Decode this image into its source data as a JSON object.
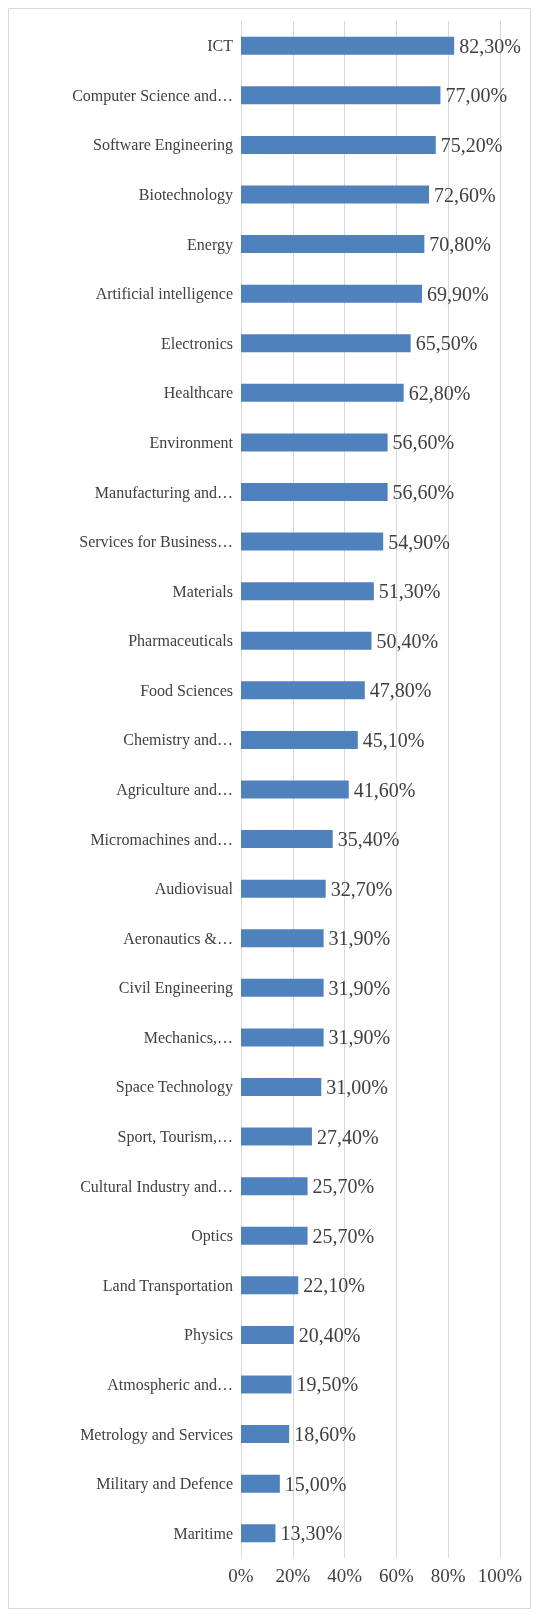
{
  "chart_data": {
    "type": "bar",
    "orientation": "horizontal",
    "categories": [
      "ICT",
      "Computer Science and…",
      "Software Engineering",
      "Biotechnology",
      "Energy",
      "Artificial intelligence",
      "Electronics",
      "Healthcare",
      "Environment",
      "Manufacturing and…",
      "Services for Business…",
      "Materials",
      "Pharmaceuticals",
      "Food Sciences",
      "Chemistry and…",
      "Agriculture and…",
      "Micromachines and…",
      "Audiovisual",
      "Aeronautics &…",
      "Civil Engineering",
      "Mechanics,…",
      "Space Technology",
      "Sport, Tourism,…",
      "Cultural Industry and…",
      "Optics",
      "Land Transportation",
      "Physics",
      "Atmospheric and…",
      "Metrology and Services",
      "Military and Defence",
      "Maritime"
    ],
    "values": [
      82.3,
      77.0,
      75.2,
      72.6,
      70.8,
      69.9,
      65.5,
      62.8,
      56.6,
      56.6,
      54.9,
      51.3,
      50.4,
      47.8,
      45.1,
      41.6,
      35.4,
      32.7,
      31.9,
      31.9,
      31.9,
      31.0,
      27.4,
      25.7,
      25.7,
      22.1,
      20.4,
      19.5,
      18.6,
      15.0,
      13.3
    ],
    "value_labels": [
      "82,30%",
      "77,00%",
      "75,20%",
      "72,60%",
      "70,80%",
      "69,90%",
      "65,50%",
      "62,80%",
      "56,60%",
      "56,60%",
      "54,90%",
      "51,30%",
      "50,40%",
      "47,80%",
      "45,10%",
      "41,60%",
      "35,40%",
      "32,70%",
      "31,90%",
      "31,90%",
      "31,90%",
      "31,00%",
      "27,40%",
      "25,70%",
      "25,70%",
      "22,10%",
      "20,40%",
      "19,50%",
      "18,60%",
      "15,00%",
      "13,30%"
    ],
    "color": "#4f81bd",
    "xlim": [
      0,
      100
    ],
    "xticks": [
      {
        "value": 0,
        "label": "0%"
      },
      {
        "value": 20,
        "label": "20%"
      },
      {
        "value": 40,
        "label": "40%"
      },
      {
        "value": 60,
        "label": "60%"
      },
      {
        "value": 80,
        "label": "80%"
      },
      {
        "value": 100,
        "label": "100%"
      }
    ],
    "grid": "x"
  }
}
